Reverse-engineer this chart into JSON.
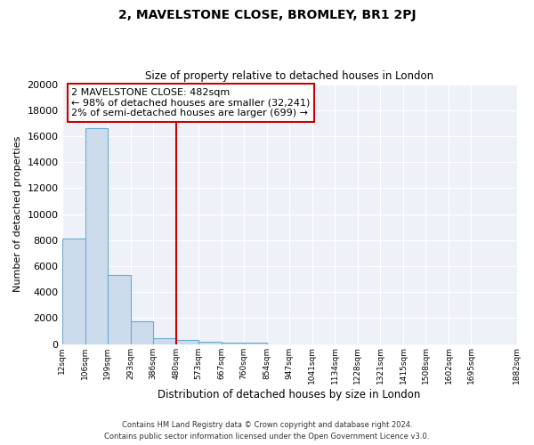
{
  "title": "2, MAVELSTONE CLOSE, BROMLEY, BR1 2PJ",
  "subtitle": "Size of property relative to detached houses in London",
  "xlabel": "Distribution of detached houses by size in London",
  "ylabel": "Number of detached properties",
  "bar_values": [
    8100,
    16600,
    5300,
    1750,
    480,
    340,
    200,
    100,
    100,
    0,
    0,
    0,
    0,
    0,
    0,
    0,
    0,
    0,
    0
  ],
  "bin_edges": [
    12,
    106,
    199,
    293,
    386,
    480,
    573,
    667,
    760,
    854,
    947,
    1041,
    1134,
    1228,
    1321,
    1415,
    1508,
    1602,
    1695,
    1882
  ],
  "tick_labels": [
    "12sqm",
    "106sqm",
    "199sqm",
    "293sqm",
    "386sqm",
    "480sqm",
    "573sqm",
    "667sqm",
    "760sqm",
    "854sqm",
    "947sqm",
    "1041sqm",
    "1134sqm",
    "1228sqm",
    "1321sqm",
    "1415sqm",
    "1508sqm",
    "1602sqm",
    "1695sqm",
    "1882sqm"
  ],
  "bar_color": "#ccdcec",
  "bar_edge_color": "#6aaad4",
  "vline_x": 480,
  "vline_color": "#cc0000",
  "annotation_line1": "2 MAVELSTONE CLOSE: 482sqm",
  "annotation_line2": "← 98% of detached houses are smaller (32,241)",
  "annotation_line3": "2% of semi-detached houses are larger (699) →",
  "annotation_box_color": "#cc0000",
  "ylim": [
    0,
    20000
  ],
  "yticks": [
    0,
    2000,
    4000,
    6000,
    8000,
    10000,
    12000,
    14000,
    16000,
    18000,
    20000
  ],
  "footer_line1": "Contains HM Land Registry data © Crown copyright and database right 2024.",
  "footer_line2": "Contains public sector information licensed under the Open Government Licence v3.0.",
  "bg_color": "#ffffff",
  "plot_bg_color": "#eef2f8",
  "grid_color": "#ffffff",
  "title_fontsize": 10,
  "subtitle_fontsize": 8
}
